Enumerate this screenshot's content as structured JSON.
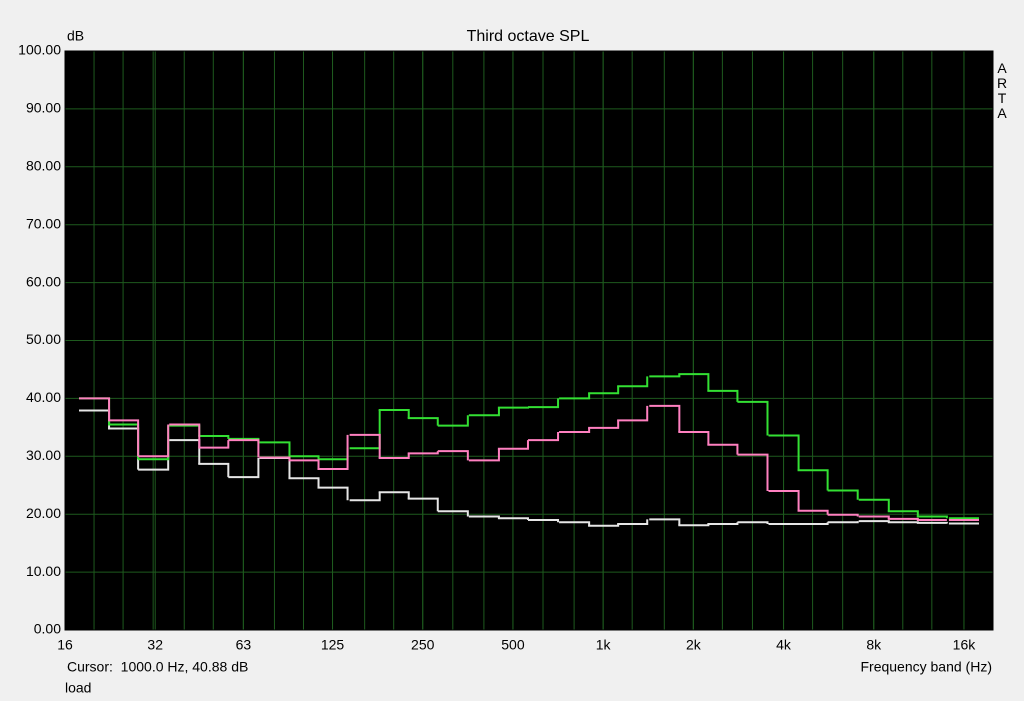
{
  "chart_data": {
    "type": "step",
    "title": "Third octave SPL",
    "ylabel": "dB",
    "xlabel": "Frequency band (Hz)",
    "watermark": "ARTA",
    "cursor": "Cursor:  1000.0 Hz, 40.88 dB",
    "trace_label": "load",
    "xscale": "log",
    "grid": true,
    "background": "#000000",
    "grid_color": "#1e5a1e",
    "x": [
      20,
      25,
      31.5,
      40,
      50,
      63,
      80,
      100,
      125,
      160,
      200,
      250,
      315,
      400,
      500,
      630,
      800,
      1000,
      1250,
      1600,
      2000,
      2500,
      3150,
      4000,
      5000,
      6300,
      8000,
      10000,
      12500,
      16000
    ],
    "xlim": [
      16,
      20000
    ],
    "xticks": [
      16,
      32,
      63,
      125,
      250,
      500,
      {
        "value": 1000,
        "label": "1k"
      },
      {
        "value": 2000,
        "label": "2k"
      },
      {
        "value": 4000,
        "label": "4k"
      },
      {
        "value": 8000,
        "label": "8k"
      },
      {
        "value": 16000,
        "label": "16k"
      }
    ],
    "ylim": [
      0,
      100
    ],
    "yticks": [
      {
        "value": 0,
        "label": "0.00"
      },
      {
        "value": 10,
        "label": "10.00"
      },
      {
        "value": 20,
        "label": "20.00"
      },
      {
        "value": 30,
        "label": "30.00"
      },
      {
        "value": 40,
        "label": "40.00"
      },
      {
        "value": 50,
        "label": "50.00"
      },
      {
        "value": 60,
        "label": "60.00"
      },
      {
        "value": 70,
        "label": "70.00"
      },
      {
        "value": 80,
        "label": "80.00"
      },
      {
        "value": 90,
        "label": "90.00"
      },
      {
        "value": 100,
        "label": "100.00"
      }
    ],
    "series": [
      {
        "color": "#e6e6e6",
        "values": [
          37.9,
          34.8,
          27.7,
          32.8,
          28.7,
          26.4,
          29.7,
          26.2,
          24.6,
          22.4,
          23.8,
          22.7,
          20.5,
          19.6,
          19.3,
          19.0,
          18.6,
          18.0,
          18.3,
          19.1,
          18.1,
          18.3,
          18.6,
          18.3,
          18.3,
          18.6,
          18.8,
          18.6,
          18.5,
          18.4
        ]
      },
      {
        "color": "#33e033",
        "values": [
          40.0,
          35.5,
          29.5,
          35.3,
          33.5,
          33.0,
          32.4,
          30.0,
          29.5,
          31.4,
          38.0,
          36.6,
          35.3,
          37.1,
          38.4,
          38.5,
          40.0,
          40.9,
          42.1,
          43.8,
          44.2,
          41.3,
          39.4,
          33.6,
          27.6,
          24.1,
          22.5,
          20.5,
          19.6,
          19.3
        ]
      },
      {
        "color": "#ff80c0",
        "values": [
          40.0,
          36.2,
          30.0,
          35.5,
          31.5,
          32.8,
          29.8,
          29.3,
          27.8,
          33.7,
          29.7,
          30.5,
          30.9,
          29.3,
          31.3,
          32.8,
          34.2,
          34.9,
          36.2,
          38.7,
          34.2,
          32.0,
          30.3,
          24.0,
          20.6,
          19.9,
          19.6,
          19.2,
          19.0,
          19.0
        ]
      }
    ]
  }
}
